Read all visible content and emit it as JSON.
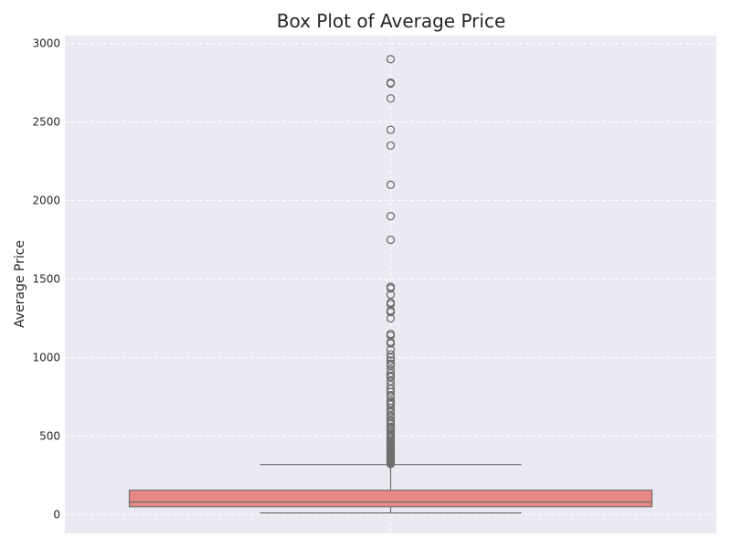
{
  "chart_data": {
    "type": "box",
    "title": "Box Plot of Average Price",
    "xlabel": "",
    "ylabel": "Average Price",
    "ylim": [
      -120,
      3050
    ],
    "yticks": [
      0,
      500,
      1000,
      1500,
      2000,
      2500,
      3000
    ],
    "grid": true,
    "box": {
      "whisker_low": 10,
      "q1": 50,
      "median": 80,
      "q3": 155,
      "whisker_high": 318,
      "color": "#e88986",
      "edge_color": "#6f6f6f"
    },
    "outliers": [
      2900,
      2750,
      2745,
      2650,
      2450,
      2350,
      2100,
      1900,
      1750,
      1450,
      1440,
      1400,
      1350,
      1340,
      1300,
      1290,
      1250,
      1150,
      1140,
      1100,
      1090,
      1050,
      1020,
      1000,
      980,
      960,
      950,
      925,
      900,
      885,
      875,
      850,
      825,
      800,
      780,
      760,
      750,
      725,
      710,
      700,
      680,
      660,
      650,
      630,
      620,
      600,
      590,
      575,
      560,
      550,
      540,
      525,
      510,
      500,
      490,
      480,
      470,
      460,
      450,
      440,
      430,
      420,
      410,
      400,
      395,
      390,
      385,
      380,
      375,
      370,
      365,
      360,
      355,
      350,
      345,
      340,
      335,
      330,
      325,
      322
    ]
  },
  "colors": {
    "background": "#eaeaf2",
    "grid": "#ffffff"
  }
}
